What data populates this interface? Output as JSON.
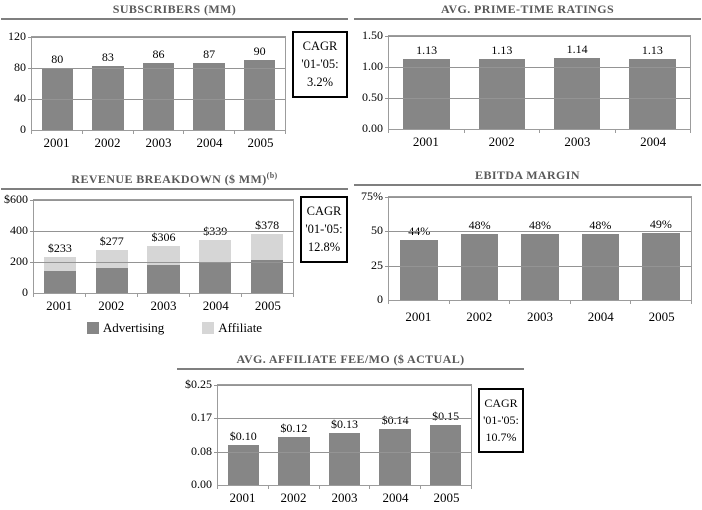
{
  "colors": {
    "background": "#ffffff",
    "bar": "#868686",
    "bar_light": "#d6d6d6",
    "grid": "#949494",
    "plot_border": "#9c9c9c",
    "title": "#595959",
    "title_rule": "#7f7f7f",
    "text": "#000000",
    "cagr_border": "#000000"
  },
  "chart_data": [
    {
      "id": "subscribers",
      "type": "bar",
      "title": "SUBSCRIBERS (MM)",
      "categories": [
        "2001",
        "2002",
        "2003",
        "2004",
        "2005"
      ],
      "values": [
        80,
        83,
        86,
        87,
        90
      ],
      "bar_labels": [
        "80",
        "83",
        "86",
        "87",
        "90"
      ],
      "y_ticks": [
        {
          "label": "120",
          "value": 120
        },
        {
          "label": "80",
          "value": 80
        },
        {
          "label": "40",
          "value": 40
        },
        {
          "label": "0",
          "value": 0
        }
      ],
      "ylim": [
        0,
        120
      ],
      "grid": true,
      "cagr": [
        "CAGR",
        "'01-'05:",
        "3.2%"
      ]
    },
    {
      "id": "prime-time-ratings",
      "type": "bar",
      "title": "AVG. PRIME-TIME RATINGS",
      "categories": [
        "2001",
        "2002",
        "2003",
        "2004"
      ],
      "values": [
        1.13,
        1.13,
        1.14,
        1.13
      ],
      "bar_labels": [
        "1.13",
        "1.13",
        "1.14",
        "1.13"
      ],
      "y_ticks": [
        {
          "label": "1.50",
          "value": 1.5
        },
        {
          "label": "1.00",
          "value": 1.0
        },
        {
          "label": "0.50",
          "value": 0.5
        },
        {
          "label": "0.00",
          "value": 0
        }
      ],
      "ylim": [
        0,
        1.5
      ],
      "grid": true
    },
    {
      "id": "revenue-breakdown",
      "type": "stacked-bar",
      "title": "REVENUE BREAKDOWN ($ MM)",
      "title_sup": "(b)",
      "categories": [
        "2001",
        "2002",
        "2003",
        "2004",
        "2005"
      ],
      "series": [
        {
          "name": "Advertising",
          "values": [
            145,
            160,
            180,
            197,
            213
          ]
        },
        {
          "name": "Affiliate",
          "values": [
            88,
            117,
            126,
            142,
            165
          ]
        }
      ],
      "totals": [
        233,
        277,
        306,
        339,
        378
      ],
      "bar_labels": [
        "$233",
        "$277",
        "$306",
        "$339",
        "$378"
      ],
      "y_ticks": [
        {
          "label": "$600",
          "value": 600
        },
        {
          "label": "400",
          "value": 400
        },
        {
          "label": "200",
          "value": 200
        },
        {
          "label": "0",
          "value": 0
        }
      ],
      "ylim": [
        0,
        600
      ],
      "grid": true,
      "legend_position": "bottom",
      "cagr": [
        "CAGR",
        "'01-'05:",
        "12.8%"
      ]
    },
    {
      "id": "ebitda-margin",
      "type": "bar",
      "title": "EBITDA MARGIN",
      "categories": [
        "2001",
        "2002",
        "2003",
        "2004",
        "2005"
      ],
      "values": [
        44,
        48,
        48,
        48,
        49
      ],
      "bar_labels": [
        "44%",
        "48%",
        "48%",
        "48%",
        "49%"
      ],
      "y_ticks": [
        {
          "label": "75%",
          "value": 75
        },
        {
          "label": "50",
          "value": 50
        },
        {
          "label": "25",
          "value": 25
        },
        {
          "label": "0",
          "value": 0
        }
      ],
      "ylim": [
        0,
        75
      ],
      "grid": true
    },
    {
      "id": "affiliate-fee",
      "type": "bar",
      "title": "AVG. AFFILIATE FEE/MO ($ ACTUAL)",
      "categories": [
        "2001",
        "2002",
        "2003",
        "2004",
        "2005"
      ],
      "values": [
        0.1,
        0.12,
        0.13,
        0.14,
        0.15
      ],
      "bar_labels": [
        "$0.10",
        "$0.12",
        "$0.13",
        "$0.14",
        "$0.15"
      ],
      "y_ticks": [
        {
          "label": "$0.25",
          "value": 0.25
        },
        {
          "label": "0.17",
          "value": 0.1667
        },
        {
          "label": "0.08",
          "value": 0.0833
        },
        {
          "label": "0.00",
          "value": 0
        }
      ],
      "ylim": [
        0,
        0.25
      ],
      "grid": true,
      "cagr": [
        "CAGR",
        "'01-'05:",
        "10.7%"
      ]
    }
  ]
}
